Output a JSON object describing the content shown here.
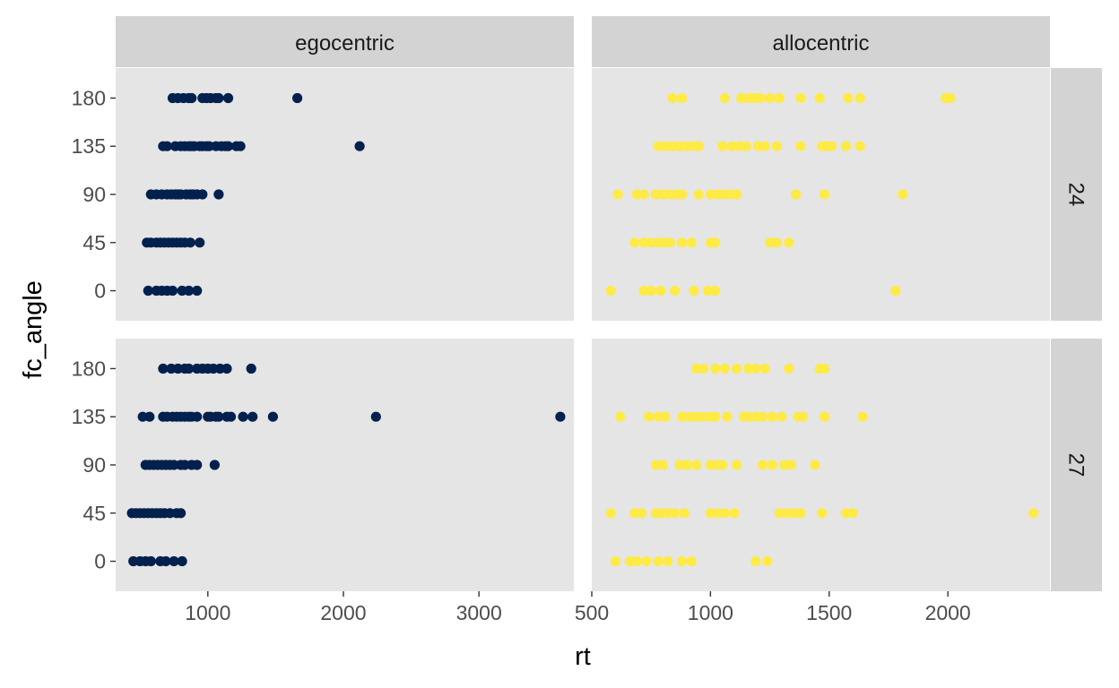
{
  "chart_data": {
    "type": "scatter",
    "xlabel": "rt",
    "ylabel": "fc_angle",
    "facet_columns": [
      "egocentric",
      "allocentric"
    ],
    "facet_rows": [
      "24",
      "27"
    ],
    "colors": {
      "egocentric": "#00204D",
      "allocentric": "#FFEA46"
    },
    "panels": [
      {
        "col": "egocentric",
        "row": "24",
        "xlim": [
          320,
          3700
        ],
        "xticks": [
          "1000",
          "2000",
          "3000"
        ],
        "xtick_values": [
          1000,
          2000,
          3000
        ],
        "ylim": [
          -28,
          208
        ],
        "yticks": [
          "0",
          "45",
          "90",
          "135",
          "180"
        ],
        "ytick_values": [
          0,
          45,
          90,
          135,
          180
        ],
        "points": [
          [
            740,
            180
          ],
          [
            780,
            180
          ],
          [
            820,
            180
          ],
          [
            860,
            180
          ],
          [
            880,
            180
          ],
          [
            960,
            180
          ],
          [
            990,
            180
          ],
          [
            1020,
            180
          ],
          [
            1060,
            180
          ],
          [
            1080,
            180
          ],
          [
            1150,
            180
          ],
          [
            1660,
            180
          ],
          [
            670,
            135
          ],
          [
            700,
            135
          ],
          [
            760,
            135
          ],
          [
            800,
            135
          ],
          [
            830,
            135
          ],
          [
            860,
            135
          ],
          [
            880,
            135
          ],
          [
            900,
            135
          ],
          [
            940,
            135
          ],
          [
            960,
            135
          ],
          [
            990,
            135
          ],
          [
            1010,
            135
          ],
          [
            1060,
            135
          ],
          [
            1100,
            135
          ],
          [
            1130,
            135
          ],
          [
            1150,
            135
          ],
          [
            1210,
            135
          ],
          [
            1240,
            135
          ],
          [
            2120,
            135
          ],
          [
            580,
            90
          ],
          [
            620,
            90
          ],
          [
            660,
            90
          ],
          [
            700,
            90
          ],
          [
            730,
            90
          ],
          [
            760,
            90
          ],
          [
            780,
            90
          ],
          [
            800,
            90
          ],
          [
            840,
            90
          ],
          [
            870,
            90
          ],
          [
            890,
            90
          ],
          [
            920,
            90
          ],
          [
            960,
            90
          ],
          [
            1080,
            90
          ],
          [
            550,
            45
          ],
          [
            580,
            45
          ],
          [
            620,
            45
          ],
          [
            650,
            45
          ],
          [
            680,
            45
          ],
          [
            710,
            45
          ],
          [
            740,
            45
          ],
          [
            770,
            45
          ],
          [
            800,
            45
          ],
          [
            830,
            45
          ],
          [
            870,
            45
          ],
          [
            940,
            45
          ],
          [
            560,
            0
          ],
          [
            620,
            0
          ],
          [
            660,
            0
          ],
          [
            700,
            0
          ],
          [
            740,
            0
          ],
          [
            810,
            0
          ],
          [
            860,
            0
          ],
          [
            920,
            0
          ]
        ]
      },
      {
        "col": "allocentric",
        "row": "24",
        "xlim": [
          500,
          2430
        ],
        "xticks": [
          "500",
          "1000",
          "1500",
          "2000"
        ],
        "xtick_values": [
          500,
          1000,
          1500,
          2000
        ],
        "ylim": [
          -28,
          208
        ],
        "yticks": [
          "0",
          "45",
          "90",
          "135",
          "180"
        ],
        "ytick_values": [
          0,
          45,
          90,
          135,
          180
        ],
        "points": [
          [
            840,
            180
          ],
          [
            880,
            180
          ],
          [
            1060,
            180
          ],
          [
            1130,
            180
          ],
          [
            1160,
            180
          ],
          [
            1180,
            180
          ],
          [
            1210,
            180
          ],
          [
            1250,
            180
          ],
          [
            1290,
            180
          ],
          [
            1380,
            180
          ],
          [
            1460,
            180
          ],
          [
            1580,
            180
          ],
          [
            1630,
            180
          ],
          [
            1990,
            180
          ],
          [
            2010,
            180
          ],
          [
            780,
            135
          ],
          [
            810,
            135
          ],
          [
            840,
            135
          ],
          [
            870,
            135
          ],
          [
            900,
            135
          ],
          [
            930,
            135
          ],
          [
            950,
            135
          ],
          [
            1050,
            135
          ],
          [
            1090,
            135
          ],
          [
            1120,
            135
          ],
          [
            1150,
            135
          ],
          [
            1200,
            135
          ],
          [
            1230,
            135
          ],
          [
            1280,
            135
          ],
          [
            1380,
            135
          ],
          [
            1470,
            135
          ],
          [
            1490,
            135
          ],
          [
            1510,
            135
          ],
          [
            1570,
            135
          ],
          [
            1630,
            135
          ],
          [
            610,
            90
          ],
          [
            690,
            90
          ],
          [
            720,
            90
          ],
          [
            770,
            90
          ],
          [
            800,
            90
          ],
          [
            830,
            90
          ],
          [
            860,
            90
          ],
          [
            880,
            90
          ],
          [
            950,
            90
          ],
          [
            1000,
            90
          ],
          [
            1030,
            90
          ],
          [
            1050,
            90
          ],
          [
            1080,
            90
          ],
          [
            1110,
            90
          ],
          [
            1360,
            90
          ],
          [
            1480,
            90
          ],
          [
            1810,
            90
          ],
          [
            680,
            45
          ],
          [
            720,
            45
          ],
          [
            750,
            45
          ],
          [
            780,
            45
          ],
          [
            810,
            45
          ],
          [
            830,
            45
          ],
          [
            880,
            45
          ],
          [
            920,
            45
          ],
          [
            1000,
            45
          ],
          [
            1020,
            45
          ],
          [
            1250,
            45
          ],
          [
            1280,
            45
          ],
          [
            1330,
            45
          ],
          [
            580,
            0
          ],
          [
            720,
            0
          ],
          [
            750,
            0
          ],
          [
            790,
            0
          ],
          [
            850,
            0
          ],
          [
            930,
            0
          ],
          [
            990,
            0
          ],
          [
            1020,
            0
          ],
          [
            1780,
            0
          ]
        ]
      },
      {
        "col": "egocentric",
        "row": "27",
        "xlim": [
          320,
          3700
        ],
        "xticks": [
          "1000",
          "2000",
          "3000"
        ],
        "xtick_values": [
          1000,
          2000,
          3000
        ],
        "ylim": [
          -28,
          208
        ],
        "yticks": [
          "0",
          "45",
          "90",
          "135",
          "180"
        ],
        "ytick_values": [
          0,
          45,
          90,
          135,
          180
        ],
        "points": [
          [
            670,
            180
          ],
          [
            730,
            180
          ],
          [
            780,
            180
          ],
          [
            830,
            180
          ],
          [
            860,
            180
          ],
          [
            920,
            180
          ],
          [
            960,
            180
          ],
          [
            1000,
            180
          ],
          [
            1040,
            180
          ],
          [
            1090,
            180
          ],
          [
            1140,
            180
          ],
          [
            1320,
            180
          ],
          [
            520,
            135
          ],
          [
            570,
            135
          ],
          [
            670,
            135
          ],
          [
            700,
            135
          ],
          [
            740,
            135
          ],
          [
            770,
            135
          ],
          [
            800,
            135
          ],
          [
            830,
            135
          ],
          [
            860,
            135
          ],
          [
            880,
            135
          ],
          [
            920,
            135
          ],
          [
            1000,
            135
          ],
          [
            1020,
            135
          ],
          [
            1060,
            135
          ],
          [
            1080,
            135
          ],
          [
            1140,
            135
          ],
          [
            1170,
            135
          ],
          [
            1260,
            135
          ],
          [
            1330,
            135
          ],
          [
            1480,
            135
          ],
          [
            2240,
            135
          ],
          [
            3600,
            135
          ],
          [
            540,
            90
          ],
          [
            570,
            90
          ],
          [
            600,
            90
          ],
          [
            630,
            90
          ],
          [
            660,
            90
          ],
          [
            690,
            90
          ],
          [
            720,
            90
          ],
          [
            750,
            90
          ],
          [
            800,
            90
          ],
          [
            830,
            90
          ],
          [
            880,
            90
          ],
          [
            920,
            90
          ],
          [
            1050,
            90
          ],
          [
            440,
            45
          ],
          [
            470,
            45
          ],
          [
            500,
            45
          ],
          [
            530,
            45
          ],
          [
            560,
            45
          ],
          [
            590,
            45
          ],
          [
            620,
            45
          ],
          [
            650,
            45
          ],
          [
            680,
            45
          ],
          [
            720,
            45
          ],
          [
            770,
            45
          ],
          [
            800,
            45
          ],
          [
            450,
            0
          ],
          [
            500,
            0
          ],
          [
            540,
            0
          ],
          [
            580,
            0
          ],
          [
            650,
            0
          ],
          [
            690,
            0
          ],
          [
            750,
            0
          ],
          [
            810,
            0
          ]
        ]
      },
      {
        "col": "allocentric",
        "row": "27",
        "xlim": [
          500,
          2430
        ],
        "xticks": [
          "500",
          "1000",
          "1500",
          "2000"
        ],
        "xtick_values": [
          500,
          1000,
          1500,
          2000
        ],
        "ylim": [
          -28,
          208
        ],
        "yticks": [
          "0",
          "45",
          "90",
          "135",
          "180"
        ],
        "ytick_values": [
          0,
          45,
          90,
          135,
          180
        ],
        "points": [
          [
            940,
            180
          ],
          [
            970,
            180
          ],
          [
            1020,
            180
          ],
          [
            1060,
            180
          ],
          [
            1110,
            180
          ],
          [
            1160,
            180
          ],
          [
            1190,
            180
          ],
          [
            1230,
            180
          ],
          [
            1330,
            180
          ],
          [
            1460,
            180
          ],
          [
            1480,
            180
          ],
          [
            620,
            135
          ],
          [
            740,
            135
          ],
          [
            780,
            135
          ],
          [
            810,
            135
          ],
          [
            880,
            135
          ],
          [
            910,
            135
          ],
          [
            940,
            135
          ],
          [
            970,
            135
          ],
          [
            1000,
            135
          ],
          [
            1020,
            135
          ],
          [
            1070,
            135
          ],
          [
            1140,
            135
          ],
          [
            1160,
            135
          ],
          [
            1190,
            135
          ],
          [
            1220,
            135
          ],
          [
            1260,
            135
          ],
          [
            1300,
            135
          ],
          [
            1370,
            135
          ],
          [
            1390,
            135
          ],
          [
            1480,
            135
          ],
          [
            1640,
            135
          ],
          [
            770,
            90
          ],
          [
            800,
            90
          ],
          [
            870,
            90
          ],
          [
            900,
            90
          ],
          [
            940,
            90
          ],
          [
            1000,
            90
          ],
          [
            1030,
            90
          ],
          [
            1050,
            90
          ],
          [
            1110,
            90
          ],
          [
            1220,
            90
          ],
          [
            1260,
            90
          ],
          [
            1310,
            90
          ],
          [
            1340,
            90
          ],
          [
            1440,
            90
          ],
          [
            580,
            45
          ],
          [
            680,
            45
          ],
          [
            710,
            45
          ],
          [
            770,
            45
          ],
          [
            790,
            45
          ],
          [
            820,
            45
          ],
          [
            850,
            45
          ],
          [
            890,
            45
          ],
          [
            1000,
            45
          ],
          [
            1030,
            45
          ],
          [
            1060,
            45
          ],
          [
            1100,
            45
          ],
          [
            1290,
            45
          ],
          [
            1320,
            45
          ],
          [
            1350,
            45
          ],
          [
            1380,
            45
          ],
          [
            1470,
            45
          ],
          [
            1570,
            45
          ],
          [
            1600,
            45
          ],
          [
            2360,
            45
          ],
          [
            600,
            0
          ],
          [
            660,
            0
          ],
          [
            690,
            0
          ],
          [
            730,
            0
          ],
          [
            780,
            0
          ],
          [
            820,
            0
          ],
          [
            880,
            0
          ],
          [
            920,
            0
          ],
          [
            1190,
            0
          ],
          [
            1240,
            0
          ]
        ]
      }
    ]
  }
}
